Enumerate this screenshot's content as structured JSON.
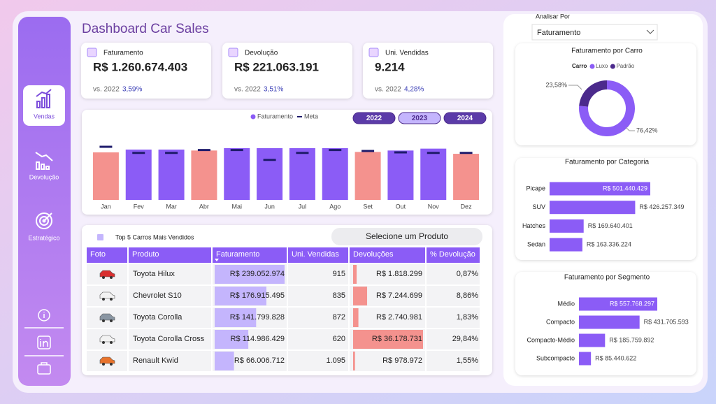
{
  "sidebar": {
    "nav": [
      "Vendas",
      "Devolução",
      "Estratégico"
    ]
  },
  "header": {
    "title": "Dashboard Car Sales"
  },
  "kpis": [
    {
      "label": "Faturamento",
      "value": "R$ 1.260.674.403",
      "compare": "vs. 2022",
      "change": "3,59%"
    },
    {
      "label": "Devolução",
      "value": "R$ 221.063.191",
      "compare": "vs. 2022",
      "change": "3,51%"
    },
    {
      "label": "Uni. Vendidas",
      "value": "9.214",
      "compare": "vs. 2022",
      "change": "4,28%"
    }
  ],
  "filter": {
    "label": "Analisar Por",
    "selected": "Faturamento"
  },
  "years": {
    "options": [
      "2022",
      "2023",
      "2024"
    ],
    "selected": "2023"
  },
  "chart_data": [
    {
      "type": "bar",
      "legend": "top",
      "categories": [
        "Jan",
        "Fev",
        "Mar",
        "Abr",
        "Mai",
        "Jun",
        "Jul",
        "Ago",
        "Set",
        "Out",
        "Nov",
        "Dez"
      ],
      "series": [
        {
          "name": "Faturamento",
          "color": "#8b5cf6",
          "values": [
            101,
            107,
            107,
            105,
            110,
            110,
            110,
            110,
            102,
            105,
            109,
            98
          ]
        },
        {
          "name": "Meta",
          "color": "#1e1b6b",
          "values": [
            113,
            100,
            100,
            106,
            106,
            85,
            100,
            106,
            104,
            101,
            100,
            100
          ]
        }
      ],
      "below_target_color": "#f4928e",
      "ylim": [
        0,
        115
      ]
    },
    {
      "type": "donut",
      "title": "Faturamento por Carro",
      "legend_title": "Carro",
      "categories": [
        "Luxo",
        "Padrão"
      ],
      "values": [
        76.42,
        23.58
      ],
      "value_labels": [
        "76,42%",
        "23,58%"
      ],
      "colors": [
        "#8b5cf6",
        "#4b2a8c"
      ]
    },
    {
      "type": "hbar",
      "title": "Faturamento por Categoria",
      "categories": [
        "Picape",
        "SUV",
        "Hatches",
        "Sedan"
      ],
      "values": [
        501440429,
        426257349,
        169640401,
        163336224
      ],
      "value_labels": [
        "R$ 501.440.429",
        "R$ 426.257.349",
        "R$ 169.640.401",
        "R$ 163.336.224"
      ],
      "color": "#8b5cf6"
    },
    {
      "type": "hbar",
      "title": "Faturamento por Segmento",
      "categories": [
        "Médio",
        "Compacto",
        "Compacto-Médio",
        "Subcompacto"
      ],
      "values": [
        557768297,
        431705593,
        185759892,
        85440622
      ],
      "value_labels": [
        "R$ 557.768.297",
        "R$ 431.705.593",
        "R$ 185.759.892",
        "R$ 85.440.622"
      ],
      "color": "#8b5cf6"
    }
  ],
  "table": {
    "title": "Top 5 Carros Mais Vendidos",
    "button": "Selecione um Produto",
    "columns": [
      "Foto",
      "Produto",
      "Faturamento",
      "Uni. Vendidas",
      "Devoluções",
      "% Devolução"
    ],
    "produto": [
      "Toyota Hilux",
      "Chevrolet S10",
      "Toyota Corolla",
      "Toyota Corolla Cross",
      "Renault Kwid"
    ],
    "faturamento": {
      "values": [
        239052974,
        176915495,
        141799828,
        114986429,
        66006712
      ],
      "value_labels": [
        "R$ 239.052.974",
        "R$ 176.915.495",
        "R$ 141.799.828",
        "R$ 114.986.429",
        "R$ 66.006.712"
      ],
      "color": "#c4b5fd"
    },
    "unidades": [
      "915",
      "835",
      "872",
      "620",
      "1.095"
    ],
    "devolucoes": {
      "values": [
        1818299,
        7244699,
        2740981,
        36178731,
        978972
      ],
      "value_labels": [
        "R$ 1.818.299",
        "R$ 7.244.699",
        "R$ 2.740.981",
        "R$ 36.178.731",
        "R$ 978.972"
      ],
      "color": "#f4928e"
    },
    "pct_devolucao": [
      "0,87%",
      "8,86%",
      "1,83%",
      "29,84%",
      "1,55%"
    ]
  }
}
